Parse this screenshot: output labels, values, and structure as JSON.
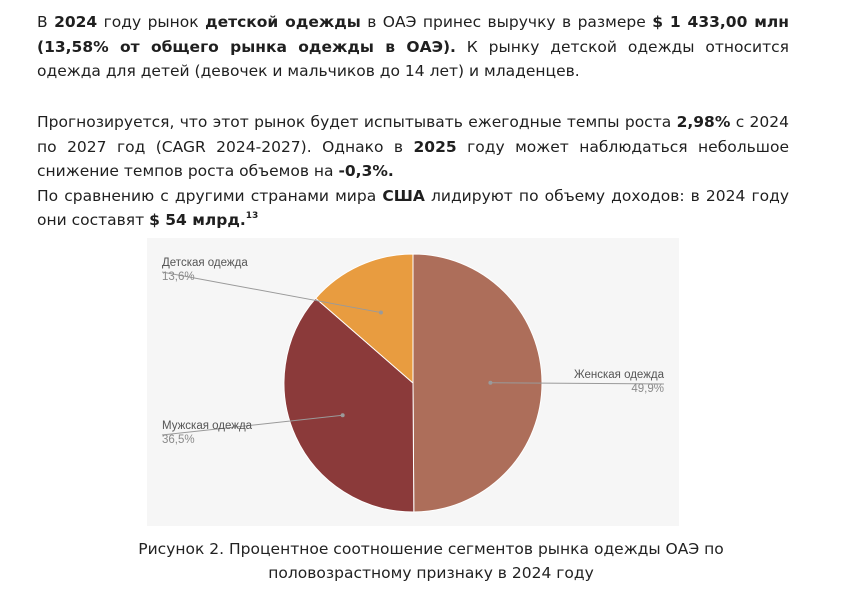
{
  "paragraph1": {
    "t1": "В ",
    "b1": "2024",
    "t2": " году рынок ",
    "b2": "детской одежды",
    "t3": " в ОАЭ принес выручку в размере ",
    "b3": "$ 1 433,00 млн (13,58% от общего рынка одежды в ОАЭ).",
    "t4": " К рынку детской одежды относится одежда для детей (девочек и мальчиков до 14 лет) и младенцев."
  },
  "paragraph2": {
    "t1": "Прогнозируется, что этот рынок будет испытывать ежегодные темпы роста ",
    "b1": "2,98%",
    "t2": " с 2024 по 2027 год (CAGR 2024-2027). Однако в ",
    "b2": "2025",
    "t3": " году может наблюдаться небольшое снижение темпов роста объемов на ",
    "b3": "-0,3%.",
    "t4": "По сравнению с другими странами мира ",
    "b4": "США",
    "t5": " лидируют по объему доходов: в 2024 году они составят ",
    "b5": "$ 54 млрд.",
    "footnote": "13"
  },
  "chart_data": {
    "type": "pie",
    "slices": [
      {
        "label": "Женская одежда",
        "value": 49.9,
        "value_label": "49,9%",
        "color": "#ad6e5a"
      },
      {
        "label": "Мужская одежда",
        "value": 36.5,
        "value_label": "36,5%",
        "color": "#8b3a3a"
      },
      {
        "label": "Детская одежда",
        "value": 13.6,
        "value_label": "13,6%",
        "color": "#e89c40"
      }
    ]
  },
  "caption": {
    "line1": "Рисунок 2. Процентное соотношение сегментов рынка одежды ОАЭ по",
    "line2": "половозрастному признаку в 2024 году"
  }
}
